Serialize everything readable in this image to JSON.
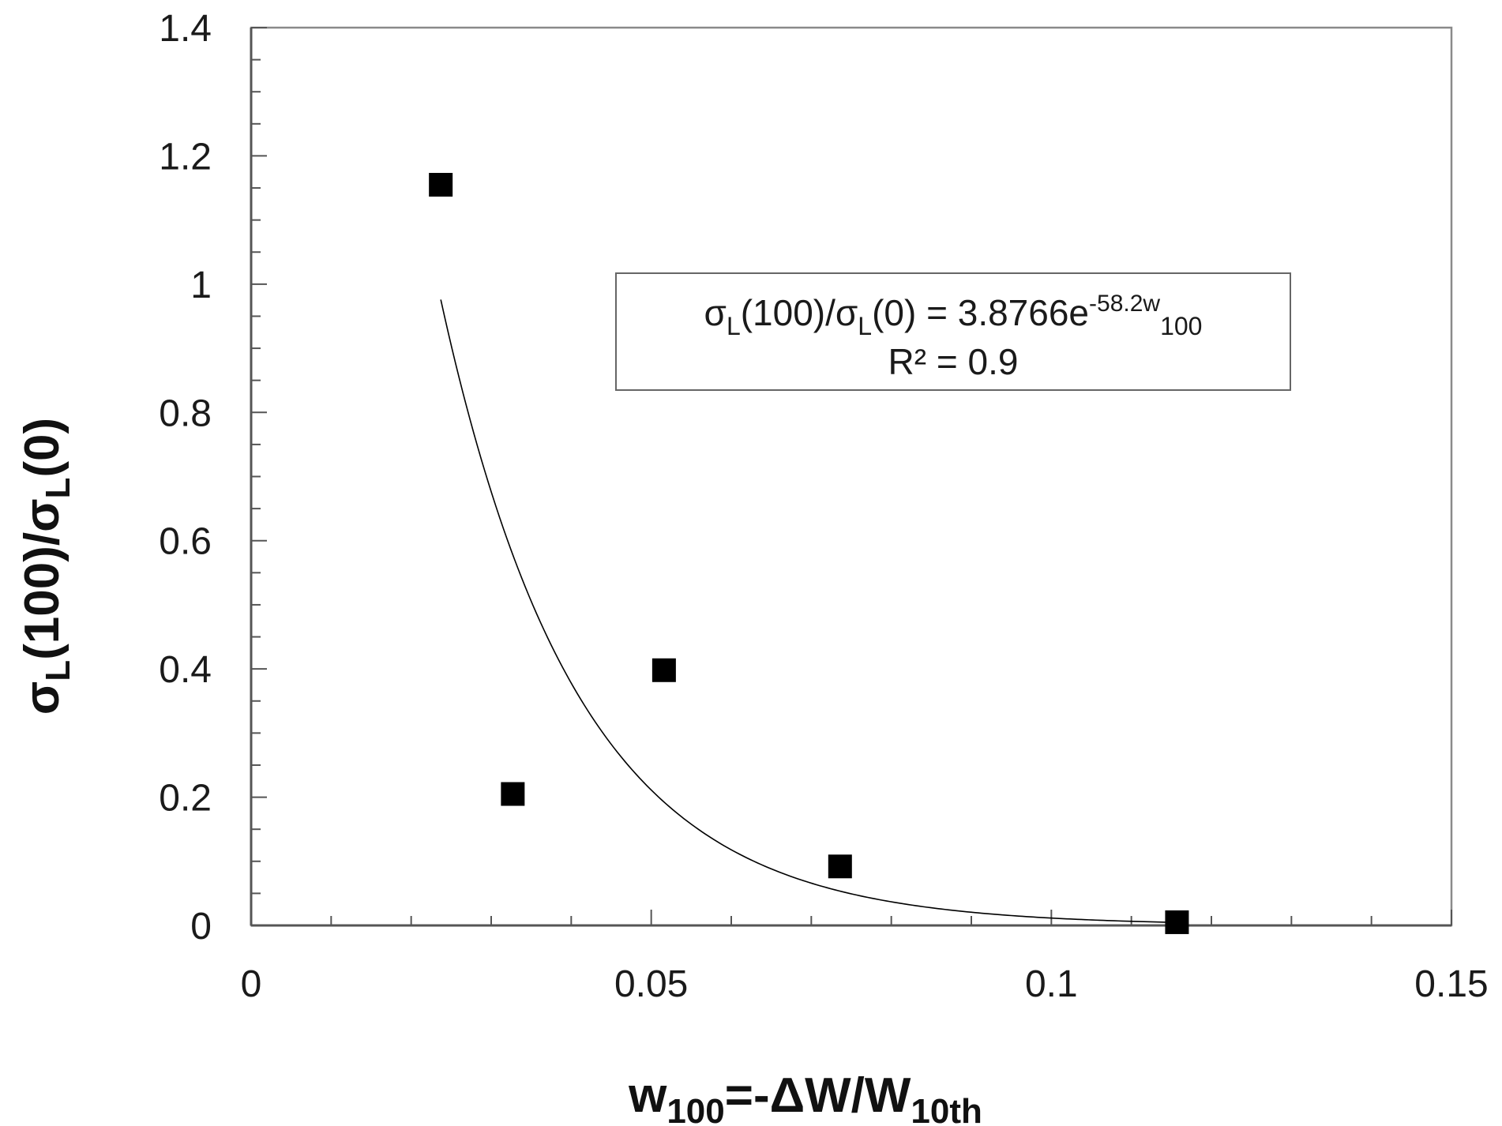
{
  "chart_data": {
    "type": "scatter",
    "x_ticks": [
      "0",
      "0.05",
      "0.1",
      "0.15"
    ],
    "y_ticks": [
      "0",
      "0.2",
      "0.4",
      "0.6",
      "0.8",
      "1",
      "1.2",
      "1.4"
    ],
    "xlim": [
      0,
      0.15
    ],
    "ylim": [
      0,
      1.4
    ],
    "grid": false,
    "xlabel": {
      "main": "w",
      "sub": "100",
      "rest": "=-ΔW/W",
      "sub2": "10th"
    },
    "ylabel": {
      "p1": "σ",
      "s1": "L",
      "p2": "(100)/σ",
      "s2": "L",
      "p3": "(0)"
    },
    "series": [
      {
        "marker": "square",
        "color": "#000000",
        "points": [
          {
            "x": 0.0237,
            "y": 1.155
          },
          {
            "x": 0.0327,
            "y": 0.205
          },
          {
            "x": 0.0516,
            "y": 0.398
          },
          {
            "x": 0.0736,
            "y": 0.092
          },
          {
            "x": 0.1157,
            "y": 0.005
          }
        ]
      }
    ],
    "trendline": {
      "type": "exponential",
      "a": 3.8766,
      "b": -58.2,
      "x_range": [
        0.0237,
        0.1157
      ],
      "color": "#000000"
    },
    "annotation": {
      "l1a": "σ",
      "l1b": "L",
      "l1c": "(100)/σ",
      "l1d": "L",
      "l1e": "(0)  = 3.8766e",
      "l1f": "-58.2w",
      "l1g": "100",
      "line2": "R² = 0.9"
    }
  }
}
